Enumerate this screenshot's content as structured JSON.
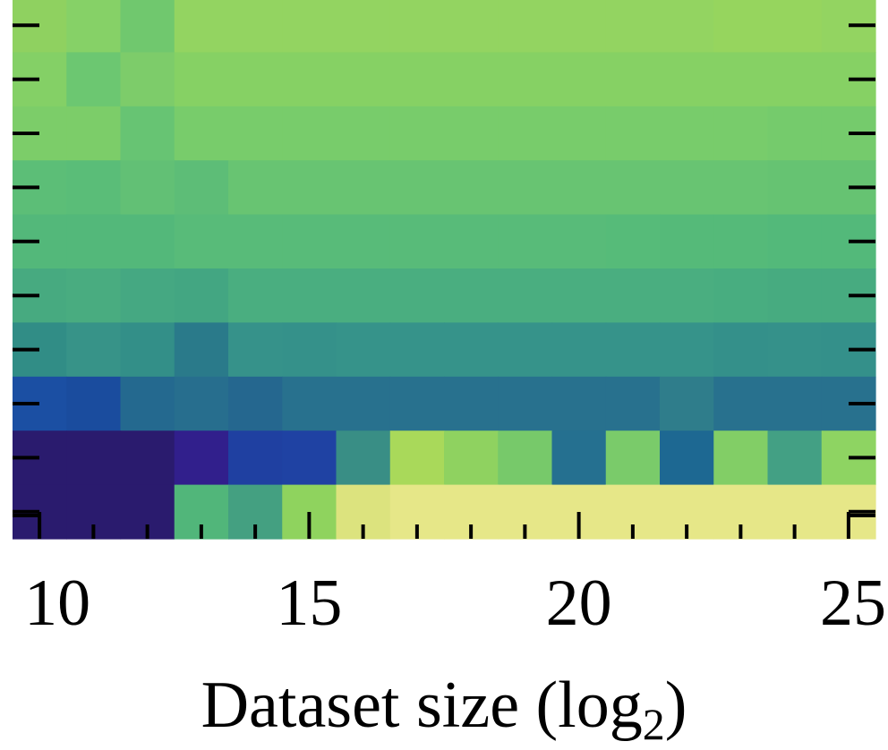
{
  "chart_data": {
    "type": "heatmap",
    "xlabel": "Dataset size (log",
    "xlabel_subscript": "2",
    "xlabel_suffix": ")",
    "x": [
      10,
      11,
      12,
      13,
      14,
      15,
      16,
      17,
      18,
      19,
      20,
      21,
      22,
      23,
      24,
      25
    ],
    "xlim": [
      9.5,
      25.5
    ],
    "x_major_ticks": [
      10,
      15,
      20,
      25
    ],
    "x_tick_labels": [
      "10",
      "15",
      "20",
      "25"
    ],
    "rows_top_to_bottom": [
      [
        "#8fd160",
        "#86d167",
        "#70c86e",
        "#93d461",
        "#93d461",
        "#93d461",
        "#93d461",
        "#93d461",
        "#93d461",
        "#93d461",
        "#93d461",
        "#93d461",
        "#93d461",
        "#96d55e",
        "#96d55e",
        "#93d461"
      ],
      [
        "#84d066",
        "#6cc771",
        "#7dcc6a",
        "#86d164",
        "#86d164",
        "#86d164",
        "#86d164",
        "#86d164",
        "#86d164",
        "#86d164",
        "#86d164",
        "#86d164",
        "#86d164",
        "#86d164",
        "#86d164",
        "#86d164"
      ],
      [
        "#7ccd69",
        "#7ccd69",
        "#67c473",
        "#78cc6b",
        "#78cc6b",
        "#78cc6b",
        "#78cc6b",
        "#78cc6b",
        "#78cc6b",
        "#78cc6b",
        "#78cc6b",
        "#78cc6b",
        "#78cc6b",
        "#78cc6b",
        "#75cb6c",
        "#75cb6c"
      ],
      [
        "#5cbe77",
        "#5abd78",
        "#62c075",
        "#5dbd77",
        "#68c472",
        "#68c472",
        "#68c472",
        "#68c472",
        "#68c472",
        "#68c472",
        "#68c472",
        "#68c472",
        "#68c472",
        "#68c472",
        "#66c372",
        "#66c372"
      ],
      [
        "#53b87a",
        "#53b87a",
        "#53b87a",
        "#58bb79",
        "#58bb79",
        "#58bb79",
        "#58bb79",
        "#58bb79",
        "#58bb79",
        "#58bb79",
        "#58bb79",
        "#56bb79",
        "#55ba79",
        "#55ba79",
        "#53b97a",
        "#53b97a"
      ],
      [
        "#47aa80",
        "#49ac80",
        "#45a882",
        "#43a682",
        "#4aae80",
        "#4aae80",
        "#4aae80",
        "#4aae80",
        "#4aae80",
        "#4aae80",
        "#4aae80",
        "#4aae80",
        "#4aae80",
        "#48ad80",
        "#47ab80",
        "#47ab80"
      ],
      [
        "#318d86",
        "#379388",
        "#338f88",
        "#2a7a8a",
        "#36928a",
        "#35918a",
        "#36938a",
        "#36938a",
        "#36938a",
        "#36938a",
        "#36938a",
        "#36938a",
        "#36938a",
        "#34908a",
        "#35918a",
        "#34908a"
      ],
      [
        "#1b4fa3",
        "#1a4c9e",
        "#24698f",
        "#276e8e",
        "#25678f",
        "#28718e",
        "#28718e",
        "#28718e",
        "#28718e",
        "#28718e",
        "#28718e",
        "#28718e",
        "#2f7d8b",
        "#28718e",
        "#28718e",
        "#28718e"
      ],
      [
        "#2a1b6e",
        "#2a1b6e",
        "#2a1b6e",
        "#311f8c",
        "#1f40a1",
        "#1f42a3",
        "#398e85",
        "#a9d95a",
        "#8fd260",
        "#77c96a",
        "#257090",
        "#7acb6a",
        "#1d6892",
        "#82ce66",
        "#43a084",
        "#8ed462"
      ],
      [
        "#2a1b6e",
        "#2a1b6e",
        "#2a1b6e",
        "#51b67a",
        "#44a081",
        "#8fd35e",
        "#dce37e",
        "#e6e788",
        "#e6e788",
        "#e6e788",
        "#e6e788",
        "#e6e788",
        "#e6e788",
        "#e6e788",
        "#e6e788",
        "#e6e788"
      ]
    ]
  }
}
